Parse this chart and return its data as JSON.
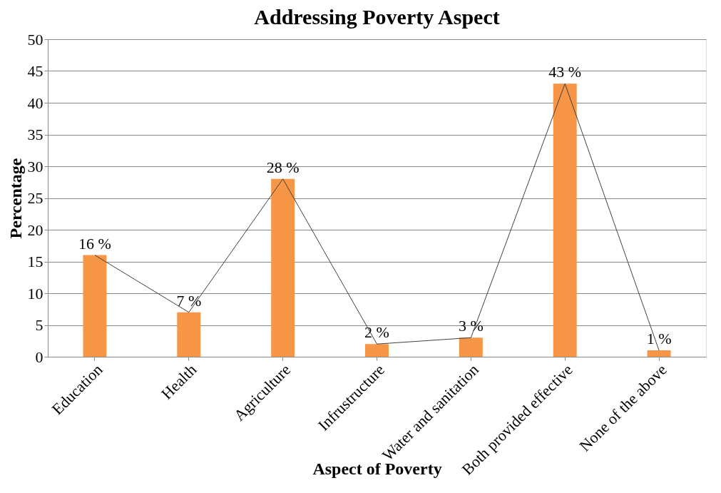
{
  "chart_data": {
    "type": "bar",
    "title": "Addressing Poverty Aspect",
    "xlabel": "Aspect of Poverty",
    "ylabel": "Percentage",
    "categories": [
      "Education",
      "Health",
      "Agriculture",
      "Infrustructure",
      "Water and sanitation",
      "Both provided effective",
      "None of the above"
    ],
    "series": [
      {
        "color": "#f79646",
        "values": [
          16,
          7,
          28,
          2,
          3,
          43,
          1
        ],
        "value_labels": [
          "16 %",
          "7 %",
          "28 %",
          "2 %",
          "3 %",
          "43 %",
          "1 %"
        ]
      },
      {
        "type": "line",
        "color": "#404040",
        "values": [
          16,
          7,
          28,
          2,
          3,
          43,
          1
        ]
      }
    ],
    "ylim": [
      0,
      50
    ],
    "yticks": [
      0,
      5,
      10,
      15,
      20,
      25,
      30,
      35,
      40,
      45,
      50
    ],
    "grid": "y"
  }
}
